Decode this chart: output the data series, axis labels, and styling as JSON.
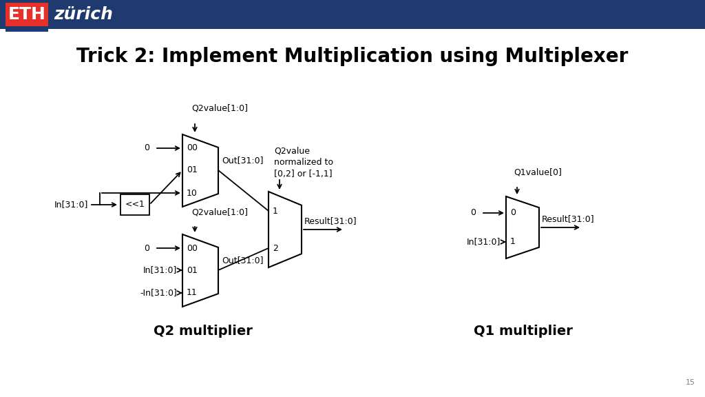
{
  "title": "Trick 2: Implement Multiplication using Multiplexer",
  "title_fontsize": 20,
  "title_fontweight": "bold",
  "bg_color": "#ffffff",
  "header_color": "#1e3a6e",
  "eth_red": "#e8302a",
  "page_number": "15",
  "q2_label": "Q2 multiplier",
  "q1_label": "Q1 multiplier",
  "q2value_label1": "Q2value[1:0]",
  "q2value_label2": "Q2value[1:0]",
  "q1value_label": "Q1value[0]",
  "q2value_note": "Q2value\nnormalized to\n[0,2] or [-1,1]",
  "result_label1": "Result[31:0]",
  "result_label2": "Result[31:0]",
  "out_label1": "Out[31:0]",
  "out_label2": "Out[31:0]",
  "in_label": "In[31:0]",
  "shift_box_label": "<<1",
  "font_family": "DejaVu Sans"
}
